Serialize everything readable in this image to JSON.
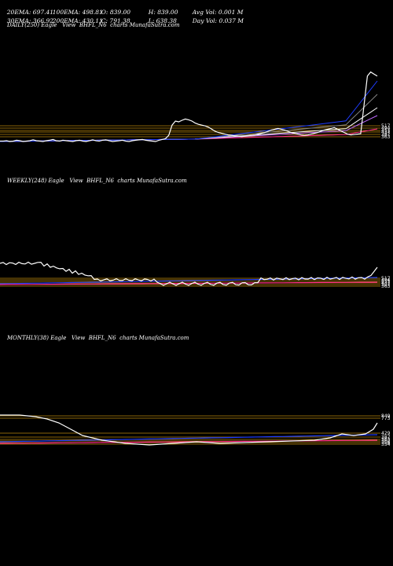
{
  "header": {
    "row1": [
      "20EMA: 697.41",
      "100EMA: 498.81",
      "O: 839.00",
      "H: 839.00",
      "Avg Vol: 0.001 M"
    ],
    "row2": [
      "30EMA: 366.92",
      "200EMA: 430.11",
      "C: 791.38",
      "L: 638.38",
      "Day Vol: 0.037 M"
    ]
  },
  "panels": {
    "daily": {
      "title": "DAILY(250) Eagle   View  BHFL_N6  charts MunafaSutra.com"
    },
    "weekly": {
      "title": "WEEKLY(248) Eagle   View  BHFL_N6  charts MunafaSutra.com"
    },
    "monthly": {
      "title": "MONTHLY(38) Eagle   View  BHFL_N6  charts MunafaSutra.com"
    }
  },
  "colors": {
    "price": "#ffffff",
    "levels": "#b8860b",
    "ema_blue": "#1e3cff",
    "ema_pink": "#ff2a8a",
    "background": "#000000"
  },
  "chart_data": [
    {
      "type": "line",
      "name": "daily",
      "series": [
        {
          "color": "#ffffff",
          "y": [
            791,
            791,
            792,
            790,
            791,
            793,
            792,
            790,
            791,
            792,
            794,
            792,
            791,
            790,
            792,
            793,
            795,
            792,
            791,
            793,
            792,
            791,
            790,
            792,
            793,
            791,
            790,
            792,
            794,
            792,
            791,
            793,
            794,
            792,
            790,
            791,
            792,
            793,
            791,
            790,
            792,
            793,
            794,
            795,
            793,
            792,
            791,
            790,
            793,
            795,
            797,
            805,
            830,
            840,
            838,
            842,
            845,
            843,
            840,
            835,
            832,
            830,
            828,
            825,
            820,
            815,
            812,
            810,
            808,
            806,
            805,
            804,
            803,
            802,
            803,
            804,
            805,
            806,
            808,
            810,
            812,
            815,
            818,
            820,
            822,
            820,
            818,
            815,
            812,
            810,
            808,
            806,
            805,
            806,
            808,
            810,
            812,
            815,
            818,
            820,
            822,
            824,
            820,
            816,
            812,
            808,
            806,
            807,
            808,
            809,
            880,
            950,
            960,
            955,
            950
          ]
        }
      ],
      "levels": [
        "517",
        "494",
        "451",
        "437",
        "387",
        "363"
      ],
      "level_colors": [
        "#b8860b",
        "#b8860b",
        "#b8860b",
        "#b8860b",
        "#b8860b",
        "#b8860b"
      ]
    },
    {
      "type": "line",
      "name": "weekly",
      "series": [
        {
          "color": "#ffffff",
          "y": []
        }
      ],
      "levels": [
        "517",
        "494",
        "451",
        "437",
        "387",
        "363"
      ]
    },
    {
      "type": "line",
      "name": "monthly",
      "levels": [
        "849",
        "773",
        "429",
        "387",
        "363",
        "362",
        "358",
        "354"
      ]
    }
  ]
}
